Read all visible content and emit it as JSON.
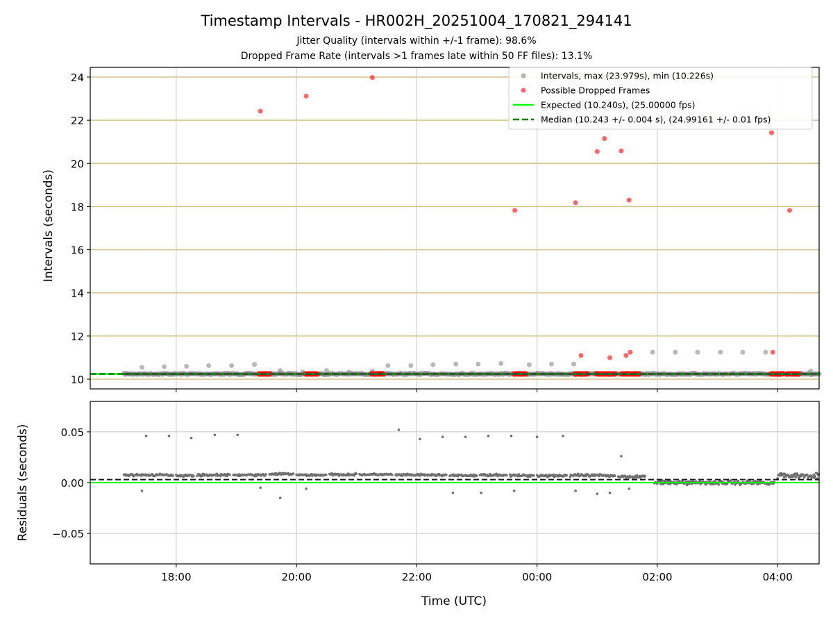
{
  "chart_data": [
    {
      "type": "scatter",
      "title": "Timestamp Intervals - HR002H_20251004_170821_294141",
      "subtitle_1": "Jitter Quality (intervals within +/-1 frame): 98.6%",
      "subtitle_2": "Dropped Frame Rate (intervals >1 frames late within 50 FF files): 13.1%",
      "xlabel": "",
      "ylabel": "Intervals (seconds)",
      "x_units": "hours since 00:00 on the first day (values above 24 fall on the next day)",
      "xlim": [
        16.57,
        28.69
      ],
      "ylim": [
        9.55,
        24.45
      ],
      "x_ticks": [
        {
          "v": 18,
          "label": "18:00"
        },
        {
          "v": 20,
          "label": "20:00"
        },
        {
          "v": 22,
          "label": "22:00"
        },
        {
          "v": 24,
          "label": "00:00"
        },
        {
          "v": 26,
          "label": "02:00"
        },
        {
          "v": 28,
          "label": "04:00"
        }
      ],
      "y_ticks": [
        {
          "v": 10,
          "label": "10"
        },
        {
          "v": 12,
          "label": "12"
        },
        {
          "v": 14,
          "label": "14"
        },
        {
          "v": 16,
          "label": "16"
        },
        {
          "v": 18,
          "label": "18"
        },
        {
          "v": 20,
          "label": "20"
        },
        {
          "v": 22,
          "label": "22"
        },
        {
          "v": 24,
          "label": "24"
        }
      ],
      "legend": {
        "placement": "top-right",
        "entries": [
          {
            "label": "Intervals, max (23.979s), min (10.226s)",
            "kind": "dot",
            "color": "#808080"
          },
          {
            "label": "Possible Dropped Frames",
            "kind": "dot",
            "color": "#ff0000"
          },
          {
            "label": "Expected (10.240s), (25.00000 fps)",
            "kind": "line",
            "color": "#00ff00"
          },
          {
            "label": "Median (10.243 +/- 0.004 s), (24.99161 +/- 0.01 fps)",
            "kind": "dash",
            "color": "#008000"
          }
        ]
      },
      "expected": 10.24,
      "median": 10.243,
      "baseline_interval_range": [
        17.13,
        28.69
      ],
      "intervals_gray": [
        [
          17.43,
          10.55
        ],
        [
          17.8,
          10.58
        ],
        [
          18.17,
          10.6
        ],
        [
          18.54,
          10.63
        ],
        [
          18.92,
          10.63
        ],
        [
          19.3,
          10.68
        ],
        [
          19.73,
          10.4
        ],
        [
          20.1,
          10.33
        ],
        [
          20.5,
          10.4
        ],
        [
          20.87,
          10.33
        ],
        [
          21.26,
          10.38
        ],
        [
          21.52,
          10.63
        ],
        [
          21.9,
          10.63
        ],
        [
          22.27,
          10.67
        ],
        [
          22.65,
          10.7
        ],
        [
          23.02,
          10.7
        ],
        [
          23.4,
          10.73
        ],
        [
          23.87,
          10.67
        ],
        [
          24.24,
          10.7
        ],
        [
          24.61,
          10.7
        ],
        [
          25.92,
          11.25
        ],
        [
          26.3,
          11.25
        ],
        [
          26.67,
          11.25
        ],
        [
          27.05,
          11.25
        ],
        [
          27.42,
          11.25
        ],
        [
          27.8,
          11.25
        ],
        [
          28.55,
          10.38
        ]
      ],
      "dropped_frames": [
        [
          19.4,
          22.42
        ],
        [
          20.16,
          23.12
        ],
        [
          21.26,
          23.98
        ],
        [
          23.63,
          17.82
        ],
        [
          24.64,
          18.18
        ],
        [
          25.0,
          20.55
        ],
        [
          25.12,
          21.15
        ],
        [
          25.4,
          20.58
        ],
        [
          25.53,
          18.3
        ],
        [
          27.9,
          21.42
        ],
        [
          28.2,
          17.82
        ],
        [
          24.73,
          11.1
        ],
        [
          25.21,
          11.0
        ],
        [
          25.48,
          11.1
        ],
        [
          25.55,
          11.25
        ],
        [
          27.92,
          11.25
        ]
      ],
      "dropped_baseline_ranges": [
        [
          19.38,
          19.57
        ],
        [
          20.15,
          20.36
        ],
        [
          21.25,
          21.45
        ],
        [
          23.62,
          23.82
        ],
        [
          24.63,
          24.85
        ],
        [
          24.98,
          25.3
        ],
        [
          25.4,
          25.71
        ],
        [
          27.89,
          28.1
        ],
        [
          28.15,
          28.37
        ]
      ]
    },
    {
      "type": "scatter",
      "xlabel": "Time (UTC)",
      "ylabel": "Residuals (seconds)",
      "xlim": [
        16.57,
        28.69
      ],
      "ylim": [
        -0.08,
        0.08
      ],
      "y_ticks": [
        {
          "v": 0.05,
          "label": "0.05"
        },
        {
          "v": 0,
          "label": "0.00"
        },
        {
          "v": -0.05,
          "label": "−0.05"
        }
      ],
      "expected_residual": 0.0,
      "median_residual": 0.003,
      "residual_bands": [
        [
          17.13,
          17.95,
          0.0075,
          0.0015
        ],
        [
          18.0,
          18.3,
          0.007,
          0.0015
        ],
        [
          18.35,
          18.9,
          0.0075,
          0.0015
        ],
        [
          18.95,
          19.5,
          0.0075,
          0.0015
        ],
        [
          19.55,
          19.95,
          0.0085,
          0.0015
        ],
        [
          20.0,
          20.5,
          0.0075,
          0.0015
        ],
        [
          20.55,
          21.0,
          0.008,
          0.0015
        ],
        [
          21.05,
          21.6,
          0.008,
          0.0015
        ],
        [
          21.65,
          22.5,
          0.0075,
          0.0015
        ],
        [
          22.55,
          23.0,
          0.007,
          0.0015
        ],
        [
          23.05,
          23.5,
          0.0075,
          0.0015
        ],
        [
          23.55,
          23.95,
          0.007,
          0.0015
        ],
        [
          24.0,
          24.5,
          0.007,
          0.002
        ],
        [
          24.55,
          25.3,
          0.007,
          0.002
        ],
        [
          25.35,
          25.8,
          0.006,
          0.002
        ],
        [
          25.95,
          27.95,
          0.0,
          0.003
        ],
        [
          28.0,
          28.69,
          0.007,
          0.004
        ]
      ],
      "residual_outliers": [
        [
          17.5,
          0.046
        ],
        [
          17.88,
          0.046
        ],
        [
          18.25,
          0.044
        ],
        [
          18.64,
          0.047
        ],
        [
          19.02,
          0.047
        ],
        [
          19.73,
          -0.015
        ],
        [
          21.7,
          0.052
        ],
        [
          22.05,
          0.043
        ],
        [
          22.43,
          0.045
        ],
        [
          22.81,
          0.045
        ],
        [
          23.19,
          0.046
        ],
        [
          23.57,
          0.046
        ],
        [
          24.0,
          0.045
        ],
        [
          24.43,
          0.046
        ],
        [
          25.4,
          0.026
        ],
        [
          17.43,
          -0.008
        ],
        [
          19.4,
          -0.005
        ],
        [
          20.16,
          -0.006
        ],
        [
          22.6,
          -0.01
        ],
        [
          23.07,
          -0.01
        ],
        [
          23.62,
          -0.008
        ],
        [
          24.64,
          -0.008
        ],
        [
          25.0,
          -0.011
        ],
        [
          25.21,
          -0.01
        ],
        [
          25.53,
          -0.006
        ]
      ]
    }
  ]
}
